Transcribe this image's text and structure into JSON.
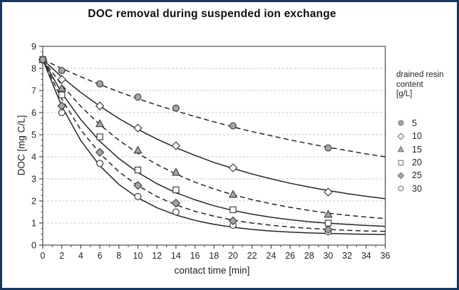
{
  "frame": {
    "border_color": "#17375e"
  },
  "chart_data": {
    "type": "scatter",
    "title": "DOC removal during suspended ion exchange",
    "xlabel": "contact time [min]",
    "ylabel": "DOC [mg C/L]",
    "xlim": [
      0,
      36
    ],
    "ylim": [
      0,
      9
    ],
    "x_ticks": [
      0,
      2,
      4,
      6,
      8,
      10,
      12,
      14,
      16,
      18,
      20,
      22,
      24,
      26,
      28,
      30,
      32,
      34,
      36
    ],
    "y_ticks": [
      0,
      1,
      2,
      3,
      4,
      5,
      6,
      7,
      8,
      9
    ],
    "grid": "horizontal-dashed",
    "legend_position": "right",
    "legend_title": "drained resin\ncontent\n[g/L]",
    "x_sample_times": [
      0,
      2,
      6,
      10,
      14,
      20,
      30
    ],
    "trend_t": [
      0,
      2,
      4,
      6,
      8,
      10,
      12,
      14,
      16,
      18,
      20,
      22,
      24,
      26,
      28,
      30,
      32,
      34,
      36
    ],
    "series": [
      {
        "name": "5",
        "marker": "circle",
        "fill": "filled",
        "line": "dashed",
        "y": [
          8.4,
          7.9,
          7.3,
          6.7,
          6.2,
          5.4,
          4.4
        ],
        "trend": [
          8.4,
          8.0,
          7.62,
          7.27,
          6.94,
          6.63,
          6.34,
          6.07,
          5.82,
          5.58,
          5.35,
          5.14,
          4.95,
          4.76,
          4.59,
          4.43,
          4.28,
          4.13,
          4.0
        ]
      },
      {
        "name": "10",
        "marker": "diamond",
        "fill": "open",
        "line": "solid",
        "y": [
          8.4,
          7.5,
          6.3,
          5.3,
          4.5,
          3.5,
          2.4
        ],
        "trend": [
          8.4,
          7.61,
          6.91,
          6.29,
          5.73,
          5.24,
          4.8,
          4.41,
          4.06,
          3.74,
          3.47,
          3.22,
          3.0,
          2.8,
          2.63,
          2.47,
          2.33,
          2.21,
          2.1
        ]
      },
      {
        "name": "15",
        "marker": "triangle",
        "fill": "filled",
        "line": "dashed",
        "y": [
          8.4,
          7.1,
          5.5,
          4.3,
          3.3,
          2.3,
          1.4
        ],
        "trend": [
          8.4,
          7.25,
          6.28,
          5.45,
          4.75,
          4.15,
          3.65,
          3.22,
          2.85,
          2.54,
          2.28,
          2.06,
          1.87,
          1.71,
          1.57,
          1.45,
          1.35,
          1.27,
          1.2
        ]
      },
      {
        "name": "20",
        "marker": "square",
        "fill": "open",
        "line": "solid",
        "y": [
          8.4,
          6.8,
          4.9,
          3.4,
          2.5,
          1.6,
          1.0
        ],
        "trend": [
          8.4,
          6.89,
          5.68,
          4.7,
          3.92,
          3.29,
          2.78,
          2.37,
          2.05,
          1.78,
          1.57,
          1.4,
          1.26,
          1.15,
          1.06,
          0.99,
          0.94,
          0.89,
          0.85
        ]
      },
      {
        "name": "25",
        "marker": "diamond",
        "fill": "filled",
        "line": "dashed",
        "y": [
          8.4,
          6.3,
          4.2,
          2.7,
          1.9,
          1.1,
          0.7
        ],
        "trend": [
          8.4,
          6.6,
          5.22,
          4.15,
          3.32,
          2.69,
          2.2,
          1.82,
          1.53,
          1.31,
          1.13,
          1.0,
          0.9,
          0.82,
          0.76,
          0.71,
          0.67,
          0.64,
          0.62
        ]
      },
      {
        "name": "30",
        "marker": "circle",
        "fill": "open",
        "line": "solid",
        "y": [
          8.4,
          6.0,
          3.7,
          2.2,
          1.5,
          0.9,
          0.6
        ],
        "trend": [
          8.4,
          6.28,
          4.73,
          3.59,
          2.75,
          2.14,
          1.69,
          1.36,
          1.12,
          0.94,
          0.81,
          0.71,
          0.64,
          0.59,
          0.55,
          0.53,
          0.51,
          0.49,
          0.48
        ]
      }
    ],
    "colors": {
      "marker_fill": "#a6a6a6",
      "marker_open_fill": "#ffffff",
      "marker_stroke": "#404040",
      "legend_marker_stroke": "#7f7f7f",
      "trendline": "#262626",
      "grid": "#c9c9c9",
      "axis": "#4d4d4d",
      "tick_label": "#262626",
      "frame_border": "#17375e"
    }
  }
}
